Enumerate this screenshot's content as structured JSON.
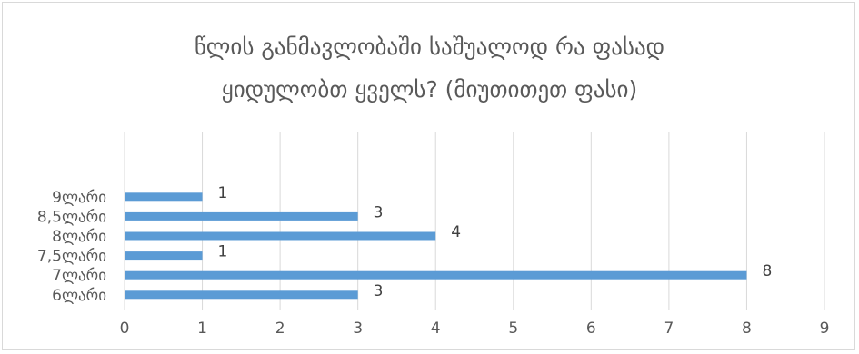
{
  "chart_data": {
    "type": "bar",
    "orientation": "horizontal",
    "title_lines": [
      "წლის განმავლობაში საშუალოდ  რა ფასად",
      "ყიდულობთ ყველს? (მიუთითეთ ფასი)"
    ],
    "categories": [
      "6ლარი",
      "7ლარი",
      "7,5ლარი",
      "8ლარი",
      "8,5ლარი",
      "9ლარი"
    ],
    "values": [
      3,
      8,
      1,
      4,
      3,
      1
    ],
    "data_labels": [
      "3",
      "8",
      "1",
      "4",
      "3",
      "1"
    ],
    "xlim": [
      0,
      9
    ],
    "x_ticks": [
      "0",
      "1",
      "2",
      "3",
      "4",
      "5",
      "6",
      "7",
      "8",
      "9"
    ],
    "grid": true,
    "legend": "none",
    "bar_color": "#5b9bd5",
    "grid_color": "#d9d9d9",
    "text_color": "#595959"
  }
}
